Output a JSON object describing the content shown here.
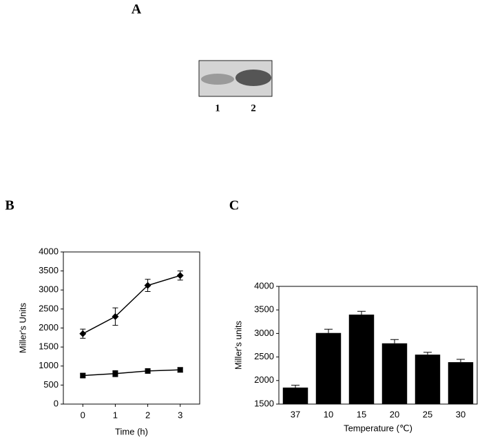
{
  "panel_labels": [
    "A",
    "B",
    "C"
  ],
  "gel": {
    "lanes": [
      "1",
      "2"
    ]
  },
  "chart_data": [
    {
      "type": "line",
      "y_label": "Miller's Units",
      "x_label": "Time (h)",
      "x": [
        0,
        1,
        2,
        3
      ],
      "xlim": [
        -0.6,
        3.6
      ],
      "xticks": [
        0,
        1,
        2,
        3
      ],
      "ylim": [
        0,
        4000
      ],
      "yticks": [
        0,
        500,
        1000,
        1500,
        2000,
        2500,
        3000,
        3500,
        4000
      ],
      "series": [
        {
          "color": "#000000",
          "marker": "diamond",
          "values": [
            1850,
            2300,
            3120,
            3380
          ],
          "errors": [
            120,
            230,
            160,
            120
          ]
        },
        {
          "color": "#000000",
          "marker": "square",
          "values": [
            750,
            800,
            870,
            900
          ],
          "errors": [
            50,
            80,
            50,
            60
          ]
        }
      ]
    },
    {
      "type": "bar",
      "y_label": "Miller's units",
      "x_label": "Temperature (℃)",
      "categories": [
        "37",
        "10",
        "15",
        "20",
        "25",
        "30"
      ],
      "values": [
        1850,
        3010,
        3400,
        2790,
        2550,
        2390
      ],
      "errors": [
        50,
        80,
        70,
        80,
        50,
        60
      ],
      "color": "#000000",
      "ylim": [
        1500,
        4000
      ],
      "yticks": [
        1500,
        2000,
        2500,
        3000,
        3500,
        4000
      ]
    }
  ]
}
